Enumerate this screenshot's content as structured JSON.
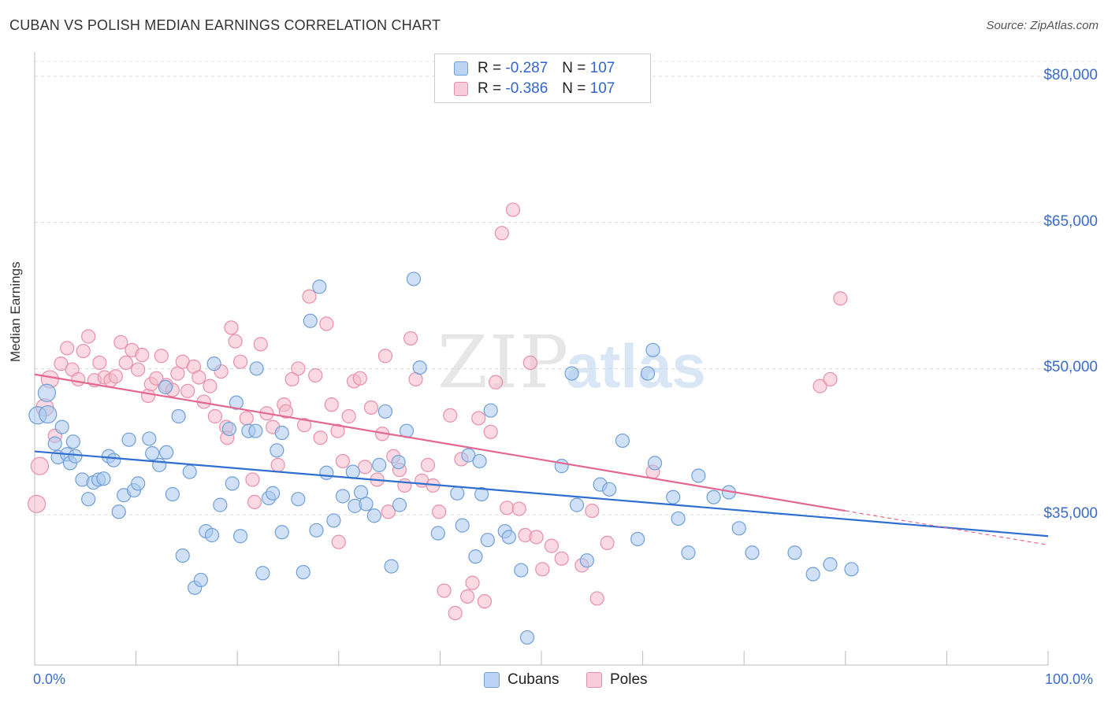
{
  "title": "CUBAN VS POLISH MEDIAN EARNINGS CORRELATION CHART",
  "source": "Source: ZipAtlas.com",
  "colors": {
    "cubans_fill": "#a9c8f0",
    "cubans_stroke": "#6f9fd8",
    "cubans_line": "#2f6fcf",
    "poles_fill": "#f5b9cb",
    "poles_stroke": "#e88fab",
    "poles_line": "#e2688f",
    "axis_label": "#3a6cc7"
  },
  "legend": {
    "cubans": {
      "r_label": "R = ",
      "r_value": "-0.287",
      "n_label": "N = ",
      "n_value": "107"
    },
    "poles": {
      "r_label": "R = ",
      "r_value": "-0.386",
      "n_label": "N = ",
      "n_value": "107"
    }
  },
  "bottom_legend": {
    "cubans": "Cubans",
    "poles": "Poles"
  },
  "chart_data": {
    "type": "scatter",
    "xlabel": "",
    "ylabel": "Median Earnings",
    "xlim": [
      0,
      100
    ],
    "ylim": [
      22000,
      85000
    ],
    "x_tick_labels": [
      "0.0%",
      "100.0%"
    ],
    "y_ticks": [
      {
        "value": 35000,
        "label": "$35,000"
      },
      {
        "value": 50000,
        "label": "$50,000"
      },
      {
        "value": 65000,
        "label": "$65,000"
      },
      {
        "value": 80000,
        "label": "$80,000"
      }
    ],
    "grid": "horizontal dashed",
    "legend_position": "top-center",
    "watermark": "ZIPatlas",
    "series": [
      {
        "name": "Cubans",
        "trend": {
          "x": [
            0,
            100
          ],
          "y": [
            41500,
            32800
          ]
        },
        "points": [
          [
            0.3,
            45200
          ],
          [
            1.2,
            47500
          ],
          [
            1.3,
            45300
          ],
          [
            2.0,
            42300
          ],
          [
            2.3,
            40900
          ],
          [
            2.7,
            44000
          ],
          [
            3.2,
            41200
          ],
          [
            3.5,
            40300
          ],
          [
            3.8,
            42500
          ],
          [
            4.0,
            41000
          ],
          [
            4.7,
            38600
          ],
          [
            5.3,
            36600
          ],
          [
            5.8,
            38300
          ],
          [
            6.3,
            38600
          ],
          [
            6.8,
            38700
          ],
          [
            7.3,
            41000
          ],
          [
            7.8,
            40600
          ],
          [
            8.3,
            35300
          ],
          [
            8.8,
            37000
          ],
          [
            9.3,
            42700
          ],
          [
            9.8,
            37500
          ],
          [
            10.2,
            38200
          ],
          [
            11.3,
            42800
          ],
          [
            11.6,
            41300
          ],
          [
            12.3,
            40100
          ],
          [
            12.9,
            48100
          ],
          [
            13.0,
            41400
          ],
          [
            13.6,
            37100
          ],
          [
            14.2,
            45100
          ],
          [
            14.6,
            30800
          ],
          [
            15.3,
            39400
          ],
          [
            15.8,
            27500
          ],
          [
            16.4,
            28300
          ],
          [
            16.9,
            33300
          ],
          [
            17.5,
            32900
          ],
          [
            17.7,
            50500
          ],
          [
            18.3,
            36000
          ],
          [
            19.2,
            43800
          ],
          [
            19.5,
            38200
          ],
          [
            19.9,
            46500
          ],
          [
            20.3,
            32800
          ],
          [
            21.1,
            43600
          ],
          [
            21.8,
            43600
          ],
          [
            21.9,
            50000
          ],
          [
            22.5,
            29000
          ],
          [
            23.1,
            36700
          ],
          [
            23.5,
            37200
          ],
          [
            23.9,
            41600
          ],
          [
            24.4,
            43400
          ],
          [
            24.4,
            33200
          ],
          [
            26.0,
            36600
          ],
          [
            26.5,
            29100
          ],
          [
            27.2,
            54900
          ],
          [
            28.1,
            58400
          ],
          [
            27.8,
            33400
          ],
          [
            28.8,
            39300
          ],
          [
            29.5,
            34400
          ],
          [
            30.4,
            36900
          ],
          [
            31.4,
            39400
          ],
          [
            31.6,
            35900
          ],
          [
            32.2,
            37300
          ],
          [
            32.7,
            36100
          ],
          [
            33.5,
            34900
          ],
          [
            34.0,
            40100
          ],
          [
            34.6,
            45600
          ],
          [
            35.2,
            29700
          ],
          [
            35.9,
            40400
          ],
          [
            36.0,
            36000
          ],
          [
            36.7,
            43600
          ],
          [
            37.4,
            59200
          ],
          [
            38.0,
            50100
          ],
          [
            39.8,
            33100
          ],
          [
            41.7,
            37200
          ],
          [
            42.2,
            33900
          ],
          [
            42.8,
            41100
          ],
          [
            43.5,
            30700
          ],
          [
            43.9,
            40500
          ],
          [
            44.1,
            37100
          ],
          [
            44.7,
            32400
          ],
          [
            45.0,
            45700
          ],
          [
            46.4,
            33300
          ],
          [
            46.8,
            32700
          ],
          [
            48.0,
            29300
          ],
          [
            48.6,
            22400
          ],
          [
            52.0,
            40000
          ],
          [
            53.0,
            49500
          ],
          [
            53.5,
            36000
          ],
          [
            54.5,
            30300
          ],
          [
            55.8,
            38100
          ],
          [
            56.7,
            37600
          ],
          [
            58.0,
            42600
          ],
          [
            59.5,
            32500
          ],
          [
            60.5,
            49500
          ],
          [
            61.0,
            51900
          ],
          [
            61.2,
            40300
          ],
          [
            63.0,
            36800
          ],
          [
            63.5,
            34600
          ],
          [
            64.5,
            31100
          ],
          [
            65.5,
            39000
          ],
          [
            67.0,
            36800
          ],
          [
            68.5,
            37300
          ],
          [
            69.5,
            33600
          ],
          [
            70.8,
            31100
          ],
          [
            75.0,
            31100
          ],
          [
            76.8,
            28900
          ],
          [
            78.5,
            29900
          ],
          [
            80.6,
            29400
          ]
        ]
      },
      {
        "name": "Poles",
        "trend": {
          "x": [
            0,
            80
          ],
          "y": [
            49400,
            35400
          ]
        },
        "trend_extension": {
          "x": [
            80,
            100
          ],
          "y": [
            35400,
            31900
          ]
        },
        "points": [
          [
            0.2,
            36100
          ],
          [
            0.5,
            40000
          ],
          [
            1.0,
            46000
          ],
          [
            1.5,
            48900
          ],
          [
            2.0,
            43100
          ],
          [
            2.6,
            50500
          ],
          [
            3.2,
            52100
          ],
          [
            3.7,
            49900
          ],
          [
            4.3,
            48900
          ],
          [
            4.8,
            51800
          ],
          [
            5.3,
            53300
          ],
          [
            5.9,
            48800
          ],
          [
            6.4,
            50600
          ],
          [
            6.9,
            49100
          ],
          [
            7.5,
            48800
          ],
          [
            8.0,
            49200
          ],
          [
            8.5,
            52700
          ],
          [
            9.0,
            50600
          ],
          [
            9.6,
            51900
          ],
          [
            10.2,
            49900
          ],
          [
            10.6,
            51400
          ],
          [
            11.2,
            47200
          ],
          [
            11.5,
            48400
          ],
          [
            12.0,
            49000
          ],
          [
            12.5,
            51300
          ],
          [
            13.0,
            48300
          ],
          [
            13.6,
            47800
          ],
          [
            14.1,
            49500
          ],
          [
            14.6,
            50700
          ],
          [
            15.1,
            47700
          ],
          [
            15.7,
            50200
          ],
          [
            16.2,
            49100
          ],
          [
            16.7,
            46600
          ],
          [
            17.3,
            48200
          ],
          [
            17.8,
            45100
          ],
          [
            18.4,
            49700
          ],
          [
            18.9,
            44000
          ],
          [
            19.4,
            54200
          ],
          [
            19.8,
            52800
          ],
          [
            20.3,
            50700
          ],
          [
            20.9,
            44900
          ],
          [
            21.5,
            38600
          ],
          [
            21.7,
            36300
          ],
          [
            22.3,
            52500
          ],
          [
            22.9,
            45400
          ],
          [
            23.5,
            44000
          ],
          [
            24.0,
            40100
          ],
          [
            24.6,
            46300
          ],
          [
            24.8,
            45600
          ],
          [
            25.4,
            48900
          ],
          [
            26.0,
            50000
          ],
          [
            26.6,
            44200
          ],
          [
            27.1,
            57400
          ],
          [
            27.7,
            49300
          ],
          [
            28.2,
            42900
          ],
          [
            28.8,
            54600
          ],
          [
            29.3,
            46300
          ],
          [
            29.9,
            43600
          ],
          [
            30.4,
            40500
          ],
          [
            31.0,
            45100
          ],
          [
            31.5,
            48700
          ],
          [
            32.1,
            49000
          ],
          [
            32.6,
            39900
          ],
          [
            33.2,
            46000
          ],
          [
            33.8,
            38600
          ],
          [
            34.3,
            43300
          ],
          [
            34.6,
            51300
          ],
          [
            34.9,
            35300
          ],
          [
            35.4,
            41000
          ],
          [
            36.0,
            39600
          ],
          [
            36.5,
            38000
          ],
          [
            37.1,
            53100
          ],
          [
            37.6,
            48900
          ],
          [
            38.2,
            38500
          ],
          [
            38.8,
            40100
          ],
          [
            39.3,
            38000
          ],
          [
            39.9,
            35300
          ],
          [
            40.4,
            27200
          ],
          [
            41.0,
            45200
          ],
          [
            41.5,
            24900
          ],
          [
            42.1,
            40700
          ],
          [
            42.7,
            26600
          ],
          [
            43.2,
            28000
          ],
          [
            43.8,
            44900
          ],
          [
            44.4,
            26100
          ],
          [
            45.0,
            43500
          ],
          [
            45.5,
            48600
          ],
          [
            46.1,
            63900
          ],
          [
            46.6,
            35700
          ],
          [
            47.2,
            66300
          ],
          [
            47.8,
            35600
          ],
          [
            48.4,
            32900
          ],
          [
            48.9,
            50600
          ],
          [
            49.5,
            32700
          ],
          [
            50.1,
            29400
          ],
          [
            51.0,
            31800
          ],
          [
            52.0,
            30500
          ],
          [
            54.0,
            29800
          ],
          [
            55.0,
            35400
          ],
          [
            55.5,
            26400
          ],
          [
            56.5,
            32100
          ],
          [
            61.0,
            39400
          ],
          [
            77.5,
            48200
          ],
          [
            78.5,
            48900
          ],
          [
            79.5,
            57200
          ],
          [
            30.0,
            32200
          ],
          [
            19.0,
            42900
          ]
        ]
      }
    ]
  }
}
